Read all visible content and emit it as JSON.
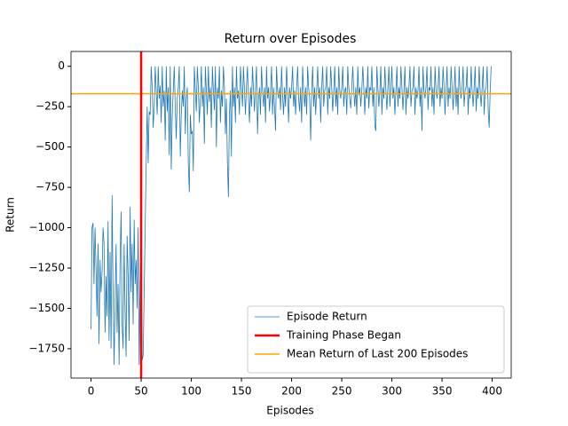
{
  "chart_data": {
    "type": "line",
    "title": "Return over Episodes",
    "xlabel": "Episodes",
    "ylabel": "Return",
    "xlim": [
      -19.95,
      418.95
    ],
    "ylim": [
      -1932,
      92
    ],
    "xticks": [
      0,
      50,
      100,
      150,
      200,
      250,
      300,
      350,
      400
    ],
    "yticks": [
      {
        "value": 0,
        "label": "0"
      },
      {
        "value": -250,
        "label": "−250"
      },
      {
        "value": -500,
        "label": "−500"
      },
      {
        "value": -750,
        "label": "−750"
      },
      {
        "value": -1000,
        "label": "−1000"
      },
      {
        "value": -1250,
        "label": "−1250"
      },
      {
        "value": -1500,
        "label": "−1500"
      },
      {
        "value": -1750,
        "label": "−1750"
      }
    ],
    "legend": "lower right",
    "series": [
      {
        "name": "Episode Return",
        "color": "#1f77b4",
        "values": [
          -1630,
          -1000,
          -970,
          -1350,
          -1000,
          -1250,
          -1550,
          -1100,
          -1720,
          -1200,
          -1400,
          -1280,
          -1000,
          -1100,
          -1650,
          -1300,
          -1550,
          -960,
          -1700,
          -1150,
          -1750,
          -800,
          -1400,
          -1850,
          -1450,
          -1100,
          -1650,
          -1350,
          -1850,
          -1200,
          -900,
          -1600,
          -1750,
          -1100,
          -1500,
          -1800,
          -1050,
          -1300,
          -1700,
          -870,
          -1400,
          -1100,
          -1600,
          -950,
          -1350,
          -1200,
          -1500,
          -1000,
          -1850,
          -1300,
          -900,
          -1820,
          -1790,
          -1400,
          -1000,
          -600,
          -250,
          -600,
          -280,
          -300,
          0,
          -130,
          -380,
          -250,
          0,
          -150,
          -300,
          0,
          -200,
          -120,
          -350,
          0,
          -250,
          -150,
          -460,
          0,
          -280,
          -130,
          -550,
          0,
          -640,
          -300,
          -150,
          0,
          -250,
          -450,
          -200,
          -130,
          0,
          -560,
          -300,
          -150,
          -250,
          0,
          -420,
          -200,
          -130,
          -600,
          -780,
          -300,
          -420,
          -400,
          -650,
          0,
          -150,
          -280,
          0,
          -130,
          -350,
          -200,
          0,
          -250,
          -130,
          -480,
          0,
          -150,
          -300,
          0,
          -220,
          -130,
          -380,
          0,
          -150,
          -270,
          0,
          -500,
          -130,
          -200,
          0,
          -350,
          -150,
          -250,
          0,
          -130,
          -420,
          -200,
          -600,
          -810,
          -300,
          -150,
          -560,
          0,
          -250,
          -130,
          -350,
          0,
          -200,
          -150,
          -300,
          0,
          -130,
          -250,
          0,
          -150,
          -300,
          -120,
          0,
          -200,
          -350,
          -130,
          -250,
          0,
          -150,
          -280,
          -130,
          0,
          -420,
          -200,
          -130,
          -300,
          0,
          -150,
          -250,
          -130,
          -350,
          0,
          -200,
          -130,
          -280,
          -150,
          0,
          -300,
          -130,
          -250,
          -400,
          0,
          -150,
          -200,
          -130,
          -270,
          0,
          -180,
          -300,
          -130,
          -250,
          0,
          -150,
          -350,
          -130,
          -200,
          -130,
          0,
          -250,
          -150,
          -300,
          -130,
          0,
          -200,
          -280,
          -130,
          -350,
          0,
          -150,
          -250,
          -130,
          -300,
          0,
          -130,
          -200,
          -460,
          -150,
          0,
          -250,
          -130,
          -300,
          -150,
          0,
          -200,
          -130,
          -350,
          -130,
          0,
          -250,
          -150,
          -130,
          0,
          -300,
          -130,
          -200,
          0,
          -130,
          -280,
          -150,
          0,
          -250,
          -130,
          -300,
          0,
          -150,
          -200,
          -130,
          0,
          -250,
          -150,
          -130,
          -300,
          0,
          -130,
          -200,
          -260,
          -130,
          0,
          -150,
          -250,
          -130,
          -300,
          0,
          -180,
          -130,
          -250,
          -150,
          0,
          -130,
          -300,
          -130,
          -200,
          0,
          -260,
          -130,
          -150,
          0,
          -250,
          -130,
          -370,
          -400,
          0,
          -130,
          -250,
          -150,
          0,
          -300,
          -130,
          -200,
          0,
          -150,
          -270,
          -130,
          0,
          -250,
          -130,
          0,
          -200,
          -130,
          -300,
          -150,
          0,
          -250,
          -130,
          -200,
          0,
          -130,
          -270,
          -150,
          0,
          -300,
          -130,
          -200,
          -130,
          0,
          -250,
          -150,
          -130,
          0,
          -300,
          -130,
          -200,
          -150,
          0,
          -250,
          -130,
          -400,
          0,
          -150,
          -200,
          -130,
          0,
          -270,
          -130,
          -150,
          0,
          -250,
          -130,
          -300,
          0,
          -150,
          -200,
          -130,
          0,
          -250,
          -130,
          -200,
          0,
          -130,
          -300,
          -150,
          0,
          -250,
          -130,
          -200,
          0,
          -130,
          -270,
          -150,
          0,
          -250,
          -130,
          -300,
          0,
          -150,
          -200,
          -130,
          0,
          -250,
          -150,
          -130,
          0,
          -300,
          -130,
          -200,
          0,
          -150,
          -250,
          -130,
          0,
          -280,
          -130,
          -200,
          0,
          -150,
          -250,
          -130,
          0,
          -300,
          -150,
          -130,
          0,
          -270,
          -380,
          -150,
          0
        ]
      }
    ],
    "vlines": [
      {
        "name": "Training Phase Began",
        "color": "red",
        "x": 50
      }
    ],
    "hlines": [
      {
        "name": "Mean Return of Last 200 Episodes",
        "color": "orange",
        "y": -170
      }
    ]
  }
}
